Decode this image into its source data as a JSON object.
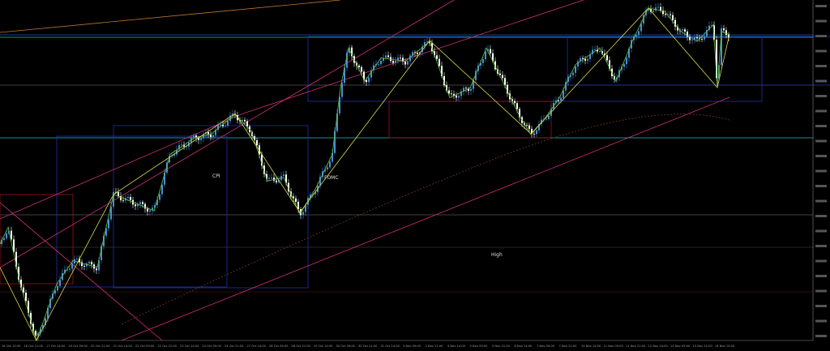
{
  "chart_data": {
    "type": "candlestick",
    "title": "",
    "xlabel": "",
    "ylabel": "",
    "grid": false,
    "legend": "none",
    "colors": {
      "background": "#000000",
      "candle_up": "#4a90d9",
      "candle_down": "#ffffff",
      "channel": "#d0307a",
      "zigzag_green": "#5fbf3a",
      "zigzag_yellow": "#d8d84a",
      "box_blue": "#2030b0",
      "box_red": "#a01020",
      "level_cyan": "#20c0c0",
      "ma_orange": "#c07830"
    },
    "x_tick_labels": [
      "16 Oct 15:00",
      "16 Oct 21:00",
      "17 Oct 14:00",
      "20 Oct 09:00",
      "20 Oct 21:00",
      "21 Oct 14:00",
      "22 Oct 09:00",
      "22 Oct 21:00",
      "23 Oct 14:00",
      "24 Oct 09:00",
      "24 Oct 21:00",
      "27 Oct 14:00",
      "28 Oct 09:00",
      "28 Oct 21:00",
      "29 Oct 14:00",
      "30 Oct 09:00",
      "30 Oct 21:00",
      "31 Oct 14:00",
      "3 Nov 09:00",
      "3 Nov 21:00",
      "4 Nov 14:00",
      "5 Nov 09:00",
      "5 Nov 21:00",
      "6 Nov 14:00",
      "7 Nov 09:00",
      "7 Nov 21:00",
      "10 Nov 14:00",
      "11 Nov 09:00",
      "11 Nov 21:00",
      "12 Nov 14:00",
      "13 Nov 09:00",
      "13 Nov 21:00",
      "14 Nov 14:00"
    ],
    "close_path": [
      29,
      34,
      17,
      0,
      17,
      24,
      22,
      44,
      41,
      39,
      56,
      61,
      62,
      68,
      63,
      48,
      49,
      38,
      46,
      56,
      76,
      88,
      78,
      85,
      84,
      90,
      73,
      76,
      88,
      78,
      68,
      62,
      66,
      73,
      83,
      88,
      78,
      90,
      100,
      99,
      93,
      90,
      95,
      76,
      93,
      92
    ],
    "annotations": [
      "CPI",
      "FOMC",
      "High"
    ]
  },
  "labels": {
    "cpi": "CPI",
    "fomc": "FOMC",
    "high": "High"
  }
}
